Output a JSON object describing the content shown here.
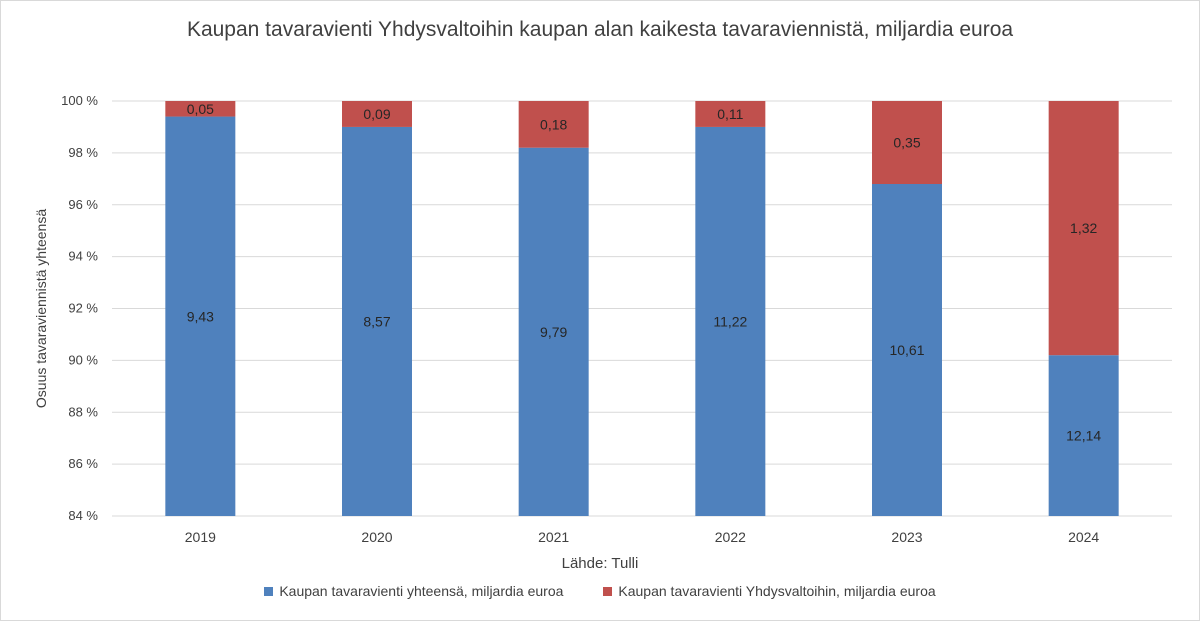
{
  "chart_data": {
    "type": "bar",
    "stacked": true,
    "title": "Kaupan tavaravienti Yhdysvaltoihin kaupan alan kaikesta tavaraviennistä, miljardia euroa",
    "xlabel": "Lähde: Tulli",
    "ylabel": "Osuus tavaraviennistä yhteensä",
    "ylim": [
      84,
      100
    ],
    "yticks": [
      "84 %",
      "86 %",
      "88 %",
      "90 %",
      "92 %",
      "94 %",
      "96 %",
      "98 %",
      "100 %"
    ],
    "categories": [
      "2019",
      "2020",
      "2021",
      "2022",
      "2023",
      "2024"
    ],
    "legend_position": "bottom",
    "grid": true,
    "series": [
      {
        "name": "Kaupan tavaravienti yhteensä, miljardia euroa",
        "color": "#4f81bd",
        "percent": [
          99.4,
          99.0,
          98.2,
          99.0,
          96.8,
          90.2
        ],
        "labels": [
          "9,43",
          "8,57",
          "9,79",
          "11,22",
          "10,61",
          "12,14"
        ]
      },
      {
        "name": "Kaupan tavaravienti Yhdysvaltoihin, miljardia euroa",
        "color": "#c0504d",
        "percent": [
          0.6,
          1.0,
          1.8,
          1.0,
          3.2,
          9.8
        ],
        "labels": [
          "0,05",
          "0,09",
          "0,18",
          "0,11",
          "0,35",
          "1,32"
        ]
      }
    ]
  }
}
